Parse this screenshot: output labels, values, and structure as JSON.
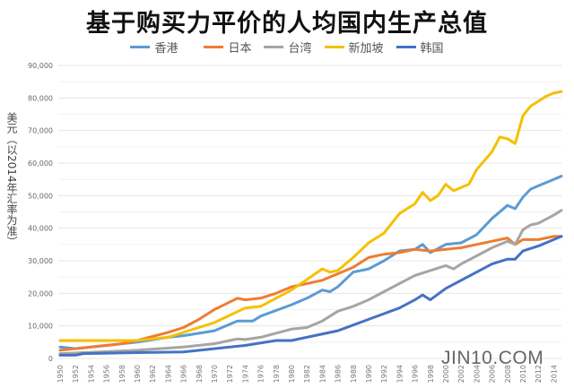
{
  "chart_data": {
    "type": "line",
    "title": "基于购买力平价的人均国内生产总值",
    "ylabel": "美元（以2014年汇率为准）",
    "xlabel": "",
    "xlim": [
      1950,
      2015
    ],
    "ylim": [
      0,
      90000
    ],
    "yticks": [
      "0",
      "10,000",
      "20,000",
      "30,000",
      "40,000",
      "50,000",
      "60,000",
      "70,000",
      "80,000",
      "90,000"
    ],
    "xticks": [
      "1950",
      "1952",
      "1954",
      "1956",
      "1958",
      "1960",
      "1962",
      "1964",
      "1966",
      "1968",
      "1970",
      "1972",
      "1974",
      "1976",
      "1978",
      "1980",
      "1982",
      "1984",
      "1986",
      "1988",
      "1990",
      "1992",
      "1994",
      "1996",
      "1998",
      "2000",
      "2002",
      "2004",
      "2006",
      "2008",
      "2010",
      "2012",
      "2014"
    ],
    "grid": true,
    "legend_position": "top",
    "series": [
      {
        "name": "香港",
        "color": "#5b9bd5",
        "x": [
          1950,
          1952,
          1956,
          1960,
          1964,
          1966,
          1970,
          1973,
          1975,
          1976,
          1980,
          1982,
          1984,
          1985,
          1986,
          1988,
          1990,
          1992,
          1994,
          1996,
          1997,
          1998,
          2000,
          2002,
          2004,
          2006,
          2008,
          2009,
          2010,
          2011,
          2012,
          2014,
          2015
        ],
        "y": [
          3500,
          3000,
          4000,
          5000,
          6500,
          7000,
          8500,
          11500,
          11500,
          13000,
          16500,
          18500,
          21000,
          20500,
          22000,
          26500,
          27500,
          30000,
          33000,
          33500,
          35000,
          32500,
          35000,
          35500,
          38000,
          43000,
          47000,
          46000,
          49500,
          52000,
          53000,
          55000,
          56000
        ]
      },
      {
        "name": "日本",
        "color": "#ed7d31",
        "x": [
          1950,
          1954,
          1958,
          1960,
          1964,
          1966,
          1968,
          1970,
          1973,
          1974,
          1976,
          1978,
          1980,
          1984,
          1988,
          1990,
          1992,
          1994,
          1996,
          1998,
          2000,
          2002,
          2004,
          2006,
          2008,
          2009,
          2010,
          2012,
          2014,
          2015
        ],
        "y": [
          2500,
          3500,
          4500,
          5500,
          8000,
          9500,
          12000,
          15000,
          18500,
          18000,
          18500,
          20000,
          22000,
          24000,
          28000,
          31000,
          32000,
          32500,
          33500,
          33000,
          33500,
          34000,
          35000,
          36000,
          37000,
          35000,
          36500,
          36500,
          37500,
          37500
        ]
      },
      {
        "name": "台湾",
        "color": "#a5a5a5",
        "x": [
          1950,
          1960,
          1966,
          1970,
          1973,
          1974,
          1976,
          1980,
          1982,
          1984,
          1986,
          1988,
          1990,
          1992,
          1994,
          1996,
          1998,
          2000,
          2001,
          2002,
          2004,
          2006,
          2008,
          2009,
          2010,
          2011,
          2012,
          2014,
          2015
        ],
        "y": [
          1500,
          2500,
          3500,
          4500,
          6000,
          5800,
          6500,
          9000,
          9500,
          11500,
          14500,
          16000,
          18000,
          20500,
          23000,
          25500,
          27000,
          28500,
          27500,
          29000,
          31500,
          34000,
          36000,
          35000,
          39500,
          41000,
          41500,
          44000,
          45500
        ]
      },
      {
        "name": "新加坡",
        "color": "#f5c000",
        "x": [
          1950,
          1960,
          1964,
          1970,
          1974,
          1976,
          1980,
          1984,
          1985,
          1986,
          1988,
          1990,
          1992,
          1994,
          1996,
          1997,
          1998,
          1999,
          2000,
          2001,
          2002,
          2003,
          2004,
          2006,
          2007,
          2008,
          2009,
          2010,
          2011,
          2012,
          2013,
          2014,
          2015
        ],
        "y": [
          5500,
          5500,
          6500,
          11000,
          15500,
          16000,
          21000,
          27500,
          26500,
          27000,
          31000,
          35500,
          38500,
          44500,
          47500,
          51000,
          48500,
          50000,
          53500,
          51500,
          52500,
          53500,
          58000,
          63500,
          68000,
          67500,
          66000,
          74500,
          77500,
          79000,
          80500,
          81500,
          82000
        ]
      },
      {
        "name": "韩国",
        "color": "#4472c4",
        "x": [
          1950,
          1952,
          1953,
          1960,
          1966,
          1970,
          1974,
          1978,
          1980,
          1982,
          1986,
          1990,
          1994,
          1996,
          1997,
          1998,
          2000,
          2002,
          2004,
          2006,
          2008,
          2009,
          2010,
          2012,
          2014,
          2015
        ],
        "y": [
          1000,
          1000,
          1500,
          1800,
          2000,
          3000,
          4000,
          5500,
          5500,
          6500,
          8500,
          12000,
          15500,
          18000,
          19500,
          18000,
          21500,
          24000,
          26500,
          29000,
          30500,
          30500,
          33000,
          34500,
          36500,
          37500
        ]
      }
    ]
  },
  "watermark": "JIN10.COM"
}
